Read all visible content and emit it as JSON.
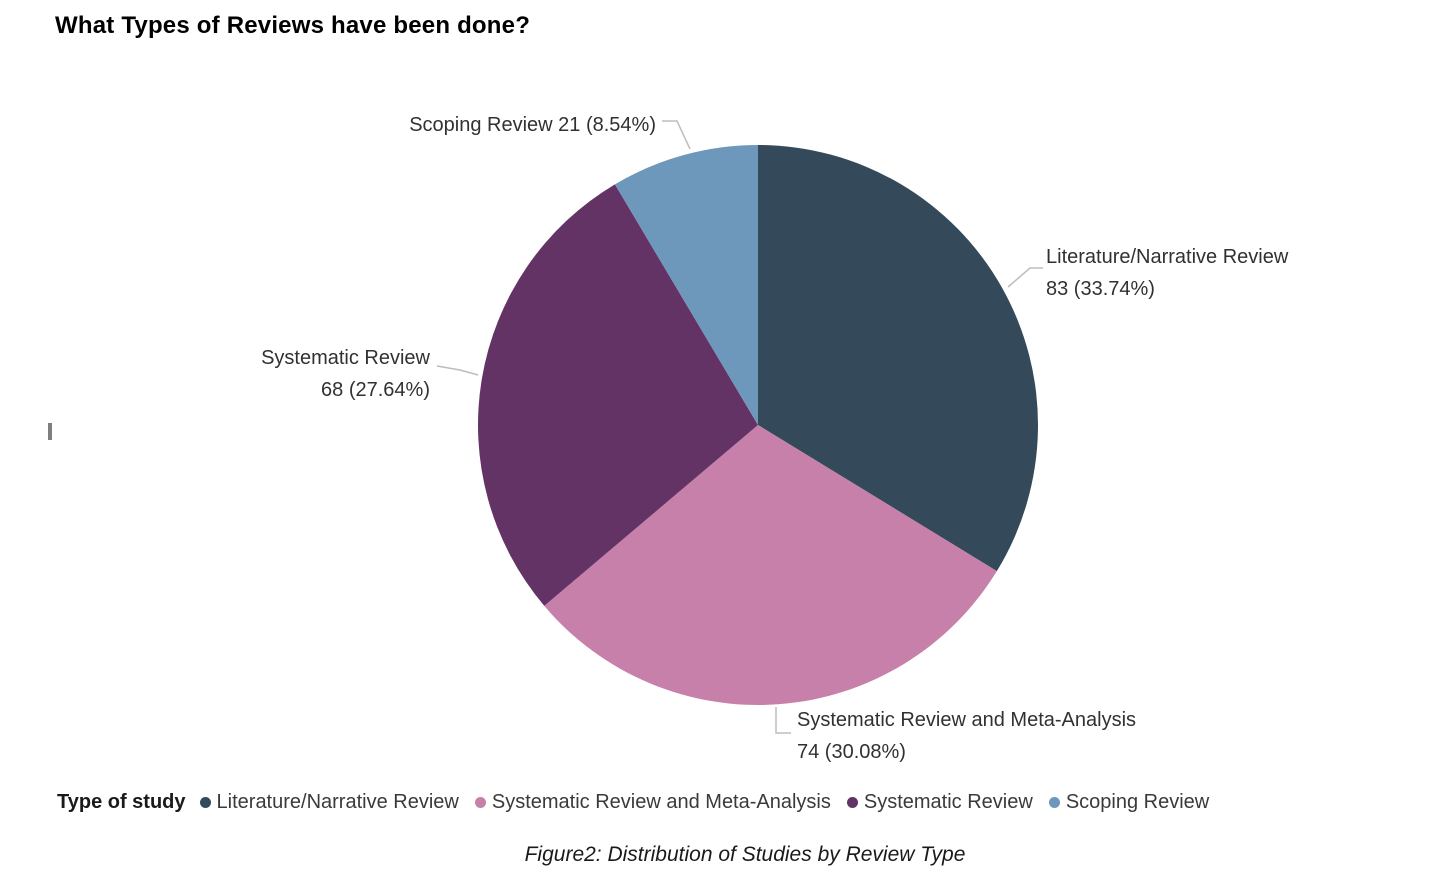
{
  "page": {
    "title": "What Types of Reviews have been done?",
    "caption": "Figure2: Distribution of Studies by Review Type"
  },
  "legend": {
    "title": "Type of study",
    "position": "bottom"
  },
  "chart_data": {
    "type": "pie",
    "title": "What Types of Reviews have been done?",
    "legend_title": "Type of study",
    "legend_position": "bottom",
    "total": 246,
    "label_format": "category value (percent)",
    "slices": [
      {
        "name": "Literature/Narrative Review",
        "value": 83,
        "percent": 33.74,
        "color": "#34495A",
        "callout_line1": "Literature/Narrative Review",
        "callout_line2": "83 (33.74%)"
      },
      {
        "name": "Systematic Review and Meta-Analysis",
        "value": 74,
        "percent": 30.08,
        "color": "#C680A9",
        "callout_line1": "Systematic Review and Meta-Analysis",
        "callout_line2": "74 (30.08%)"
      },
      {
        "name": "Systematic Review",
        "value": 68,
        "percent": 27.64,
        "color": "#643366",
        "callout_line1": "Systematic Review",
        "callout_line2": "68 (27.64%)"
      },
      {
        "name": "Scoping Review",
        "value": 21,
        "percent": 8.54,
        "color": "#6E97BC",
        "callout_line1": "Scoping Review 21 (8.54%)",
        "callout_line2": ""
      }
    ]
  }
}
